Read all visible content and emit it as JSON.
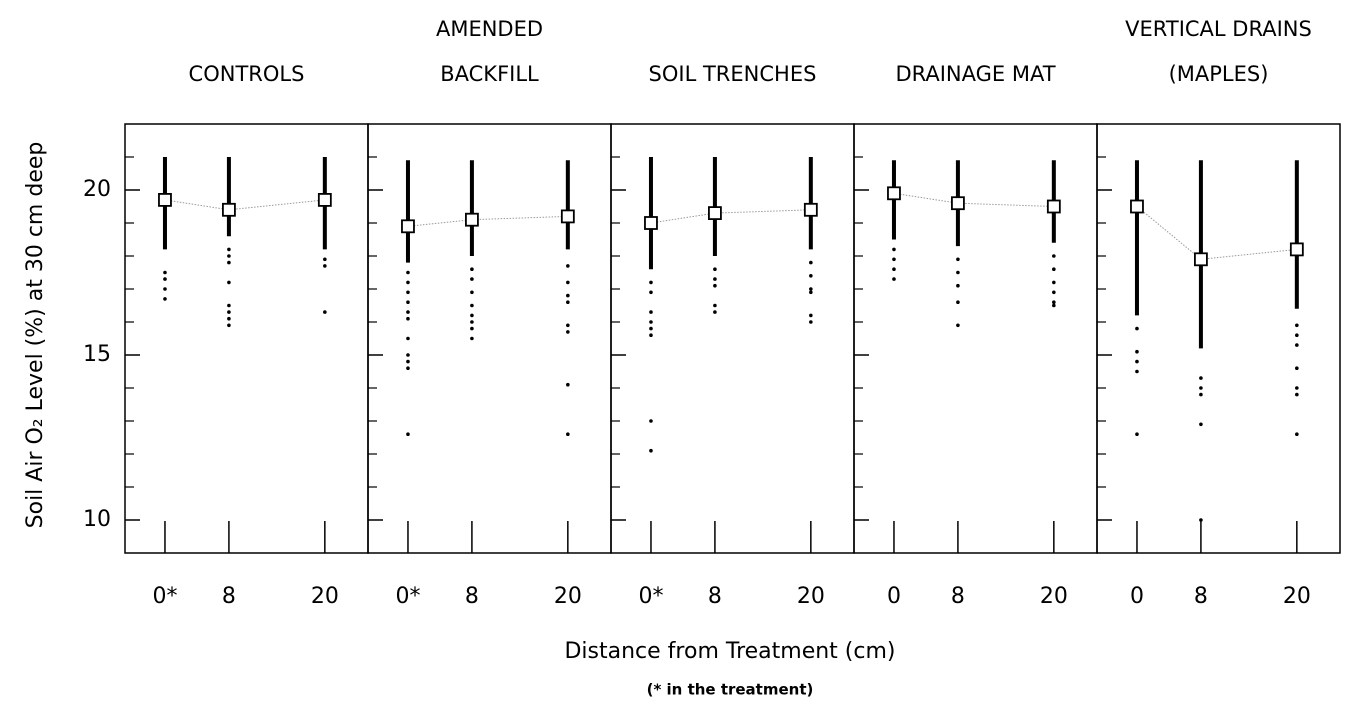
{
  "chart_data": {
    "type": "scatter",
    "ylabel": "Soil Air O₂ Level (%) at 30 cm deep",
    "xlabel": "Distance from Treatment (cm)",
    "note": "(* in the treatment)",
    "ylim": [
      9,
      22
    ],
    "yticks": [
      10,
      15,
      20
    ],
    "yminor_ticks": [
      11,
      12,
      13,
      14,
      16,
      17,
      18,
      19,
      21
    ],
    "xlim": [
      -5,
      25.4
    ],
    "color": "#000000",
    "panels": [
      {
        "title": [
          "CONTROLS"
        ],
        "xticks": [
          {
            "value": 0,
            "label": "0*"
          },
          8,
          20
        ],
        "groups": [
          {
            "x": 0,
            "mean": 19.7,
            "band": [
              18.2,
              21
            ],
            "points": [
              17.5,
              17.3,
              17.0,
              16.7
            ]
          },
          {
            "x": 8,
            "mean": 19.4,
            "band": [
              18.6,
              21
            ],
            "points": [
              18.2,
              18.0,
              17.8,
              17.2,
              16.5,
              16.3,
              16.1,
              15.9
            ]
          },
          {
            "x": 20,
            "mean": 19.7,
            "band": [
              18.2,
              21
            ],
            "points": [
              17.9,
              17.7,
              16.3
            ]
          }
        ]
      },
      {
        "title": [
          "AMENDED",
          "BACKFILL"
        ],
        "xticks": [
          {
            "value": 0,
            "label": "0*"
          },
          8,
          20
        ],
        "groups": [
          {
            "x": 0,
            "mean": 18.9,
            "band": [
              17.8,
              20.9
            ],
            "points": [
              17.5,
              17.2,
              16.9,
              16.6,
              16.3,
              16.1,
              15.5,
              15.0,
              14.8,
              14.6,
              12.6
            ]
          },
          {
            "x": 8,
            "mean": 19.1,
            "band": [
              18.0,
              20.9
            ],
            "points": [
              17.6,
              17.3,
              16.9,
              16.5,
              16.2,
              16.0,
              15.8,
              15.5
            ]
          },
          {
            "x": 20,
            "mean": 19.2,
            "band": [
              18.2,
              20.9
            ],
            "points": [
              17.7,
              17.2,
              16.8,
              16.6,
              15.9,
              15.7,
              14.1,
              12.6
            ]
          }
        ]
      },
      {
        "title": [
          "SOIL TRENCHES"
        ],
        "xticks": [
          {
            "value": 0,
            "label": "0*"
          },
          8,
          20
        ],
        "groups": [
          {
            "x": 0,
            "mean": 19.0,
            "band": [
              17.6,
              21
            ],
            "points": [
              17.2,
              16.9,
              16.3,
              16.0,
              15.8,
              15.6,
              13.0,
              12.1
            ]
          },
          {
            "x": 8,
            "mean": 19.3,
            "band": [
              18.0,
              21
            ],
            "points": [
              17.6,
              17.3,
              17.1,
              16.5,
              16.3
            ]
          },
          {
            "x": 20,
            "mean": 19.4,
            "band": [
              18.2,
              21
            ],
            "points": [
              17.8,
              17.4,
              17.0,
              16.9,
              16.2,
              16.0
            ]
          }
        ]
      },
      {
        "title": [
          "DRAINAGE MAT"
        ],
        "xticks": [
          0,
          8,
          20
        ],
        "groups": [
          {
            "x": 0,
            "mean": 19.9,
            "band": [
              18.5,
              20.9
            ],
            "points": [
              18.2,
              17.9,
              17.6,
              17.3
            ]
          },
          {
            "x": 8,
            "mean": 19.6,
            "band": [
              18.3,
              20.9
            ],
            "points": [
              17.9,
              17.5,
              17.1,
              16.6,
              15.9
            ]
          },
          {
            "x": 20,
            "mean": 19.5,
            "band": [
              18.4,
              20.9
            ],
            "points": [
              18.0,
              17.6,
              17.2,
              16.9,
              16.6,
              16.5
            ]
          }
        ]
      },
      {
        "title": [
          "VERTICAL DRAINS",
          "(MAPLES)"
        ],
        "xticks": [
          0,
          8,
          20
        ],
        "groups": [
          {
            "x": 0,
            "mean": 19.5,
            "band": [
              16.2,
              20.9
            ],
            "points": [
              15.8,
              15.1,
              14.8,
              14.5,
              12.6
            ]
          },
          {
            "x": 8,
            "mean": 17.9,
            "band": [
              15.2,
              20.9
            ],
            "points": [
              14.3,
              14.0,
              13.8,
              12.9,
              10.0
            ]
          },
          {
            "x": 20,
            "mean": 18.2,
            "band": [
              16.4,
              20.9
            ],
            "points": [
              15.9,
              15.6,
              15.3,
              14.6,
              14.0,
              13.8,
              12.6
            ]
          }
        ]
      }
    ]
  }
}
